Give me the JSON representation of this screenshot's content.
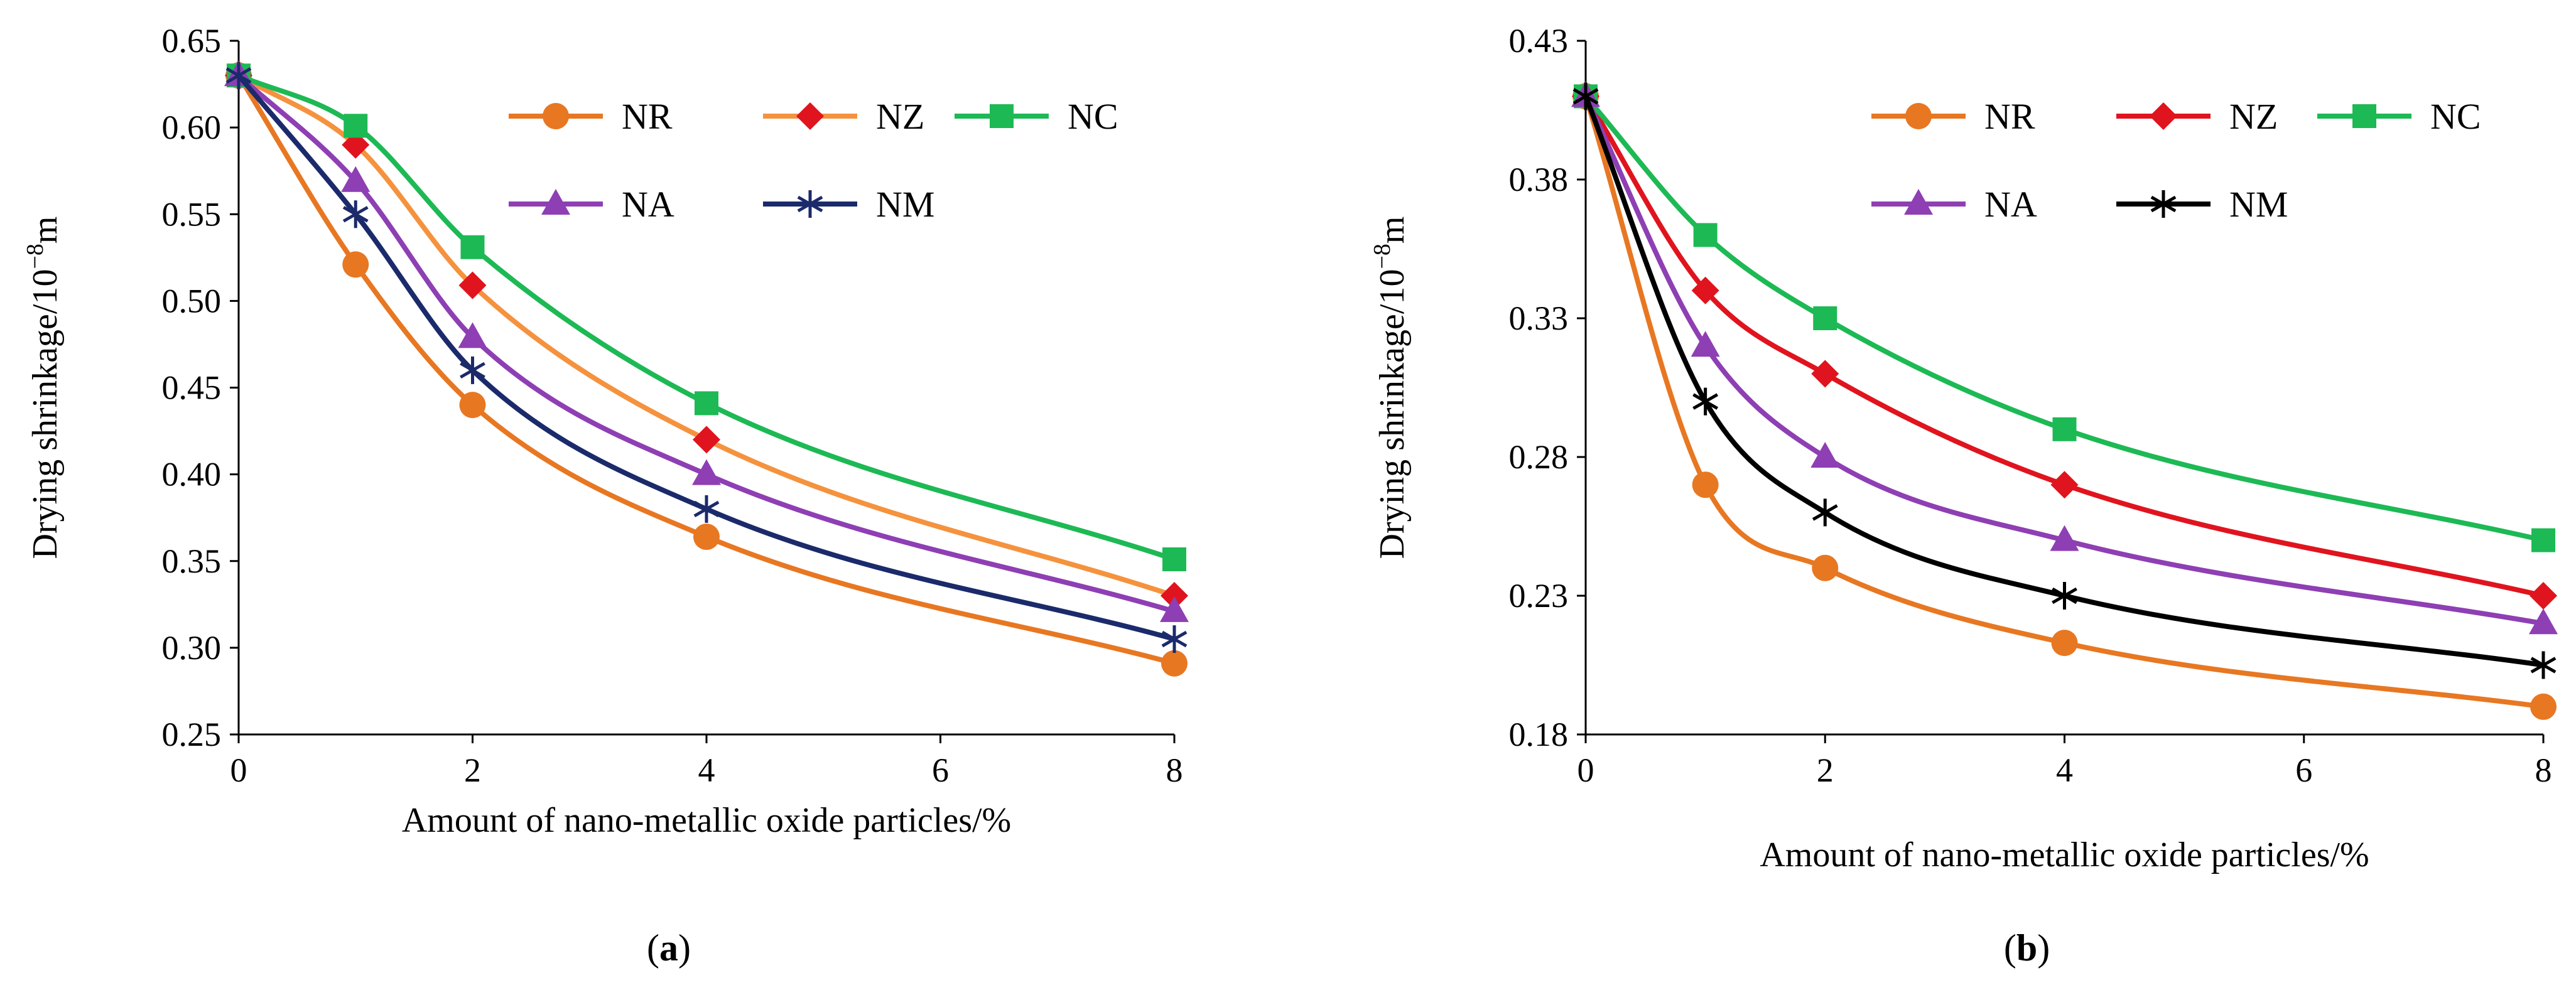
{
  "chart_data": [
    {
      "type": "line",
      "panel_label": "a",
      "xlabel": "Amount of nano-metallic oxide particles/%",
      "ylabel_text": "Drying shrinkage/10",
      "ylabel_exp": "−8",
      "ylabel_unit": "m",
      "x": [
        0,
        1,
        2,
        4,
        8
      ],
      "xticks": [
        "0",
        "2",
        "4",
        "6",
        "8"
      ],
      "xlim": [
        0,
        8
      ],
      "yticks": [
        "0.25",
        "0.30",
        "0.35",
        "0.40",
        "0.45",
        "0.50",
        "0.55",
        "0.60",
        "0.65"
      ],
      "ylim": [
        0.25,
        0.65
      ],
      "grid": false,
      "legend_position": "top-right",
      "series": [
        {
          "name": "NR",
          "color": "#E87722",
          "marker": "circle",
          "values": [
            0.63,
            0.521,
            0.44,
            0.364,
            0.291
          ]
        },
        {
          "name": "NZ",
          "color": "#F5923E",
          "marker": "diamond",
          "marker_color": "#E0141E",
          "values": [
            0.63,
            0.59,
            0.509,
            0.42,
            0.33
          ]
        },
        {
          "name": "NC",
          "color": "#1DB954",
          "marker": "square",
          "values": [
            0.63,
            0.601,
            0.531,
            0.441,
            0.351
          ]
        },
        {
          "name": "NA",
          "color": "#8E3FB3",
          "marker": "triangle",
          "values": [
            0.63,
            0.569,
            0.479,
            0.4,
            0.321
          ]
        },
        {
          "name": "NM",
          "color": "#1B2A6B",
          "marker": "asterisk",
          "values": [
            0.63,
            0.55,
            0.46,
            0.38,
            0.305
          ]
        }
      ]
    },
    {
      "type": "line",
      "panel_label": "b",
      "xlabel": "Amount of nano-metallic oxide particles/%",
      "ylabel_text": "Drying shrinkage/10",
      "ylabel_exp": "−8",
      "ylabel_unit": "m",
      "x": [
        0,
        1,
        2,
        4,
        8
      ],
      "xticks": [
        "0",
        "2",
        "4",
        "6",
        "8"
      ],
      "xlim": [
        0,
        8
      ],
      "yticks": [
        "0.18",
        "0.23",
        "0.28",
        "0.33",
        "0.38",
        "0.43"
      ],
      "ylim": [
        0.18,
        0.43
      ],
      "grid": false,
      "legend_position": "top-right",
      "series": [
        {
          "name": "NR",
          "color": "#E87722",
          "marker": "circle",
          "values": [
            0.41,
            0.27,
            0.24,
            0.213,
            0.19
          ]
        },
        {
          "name": "NZ",
          "color": "#E0141E",
          "marker": "diamond",
          "values": [
            0.41,
            0.34,
            0.31,
            0.27,
            0.23
          ]
        },
        {
          "name": "NC",
          "color": "#1DB954",
          "marker": "square",
          "values": [
            0.41,
            0.36,
            0.33,
            0.29,
            0.25
          ]
        },
        {
          "name": "NA",
          "color": "#8E3FB3",
          "marker": "triangle",
          "values": [
            0.41,
            0.32,
            0.28,
            0.25,
            0.22
          ]
        },
        {
          "name": "NM",
          "color": "#000000",
          "marker": "asterisk",
          "values": [
            0.41,
            0.3,
            0.26,
            0.23,
            0.205
          ]
        }
      ]
    }
  ]
}
